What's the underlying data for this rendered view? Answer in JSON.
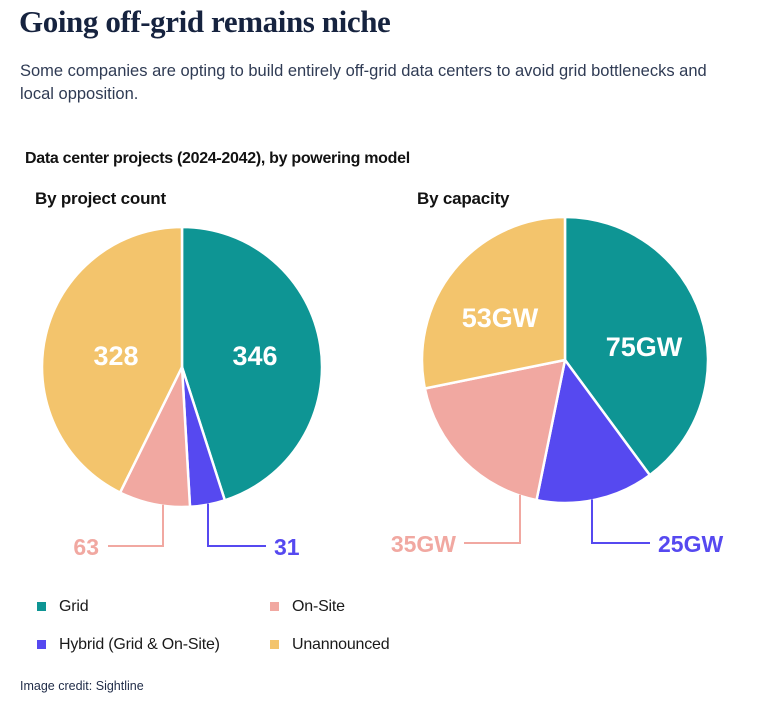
{
  "page": {
    "title": "Going off-grid remains niche",
    "subtitle": "Some companies are opting to build entirely off-grid data centers to avoid grid bottlenecks and local opposition.",
    "credit": "Image credit: Sightline"
  },
  "chart": {
    "title": "Data center projects (2024-2042), by powering model"
  },
  "colors": {
    "grid": "#0E9594",
    "hybrid": "#5649F0",
    "onsite": "#F1A8A1",
    "unannounced": "#F3C46C"
  },
  "legend": {
    "items": [
      {
        "label": "Grid",
        "color": "#0E9594"
      },
      {
        "label": "On-Site",
        "color": "#F1A8A1"
      },
      {
        "label": "Hybrid (Grid & On-Site)",
        "color": "#5649F0"
      },
      {
        "label": "Unannounced",
        "color": "#F3C46C"
      }
    ]
  },
  "chart_data": [
    {
      "type": "pie",
      "title": "By project count",
      "categories": [
        "Grid",
        "Hybrid (Grid & On-Site)",
        "On-Site",
        "Unannounced"
      ],
      "values": [
        346,
        31,
        63,
        328
      ],
      "labels": [
        "346",
        "31",
        "63",
        "328"
      ],
      "colors": [
        "#0E9594",
        "#5649F0",
        "#F1A8A1",
        "#F3C46C"
      ],
      "start_angle_deg": 0,
      "direction": "clockwise",
      "label_placement": {
        "inside_indices": [
          0,
          3
        ],
        "callout_indices": [
          1,
          2
        ]
      },
      "legend_position": "bottom"
    },
    {
      "type": "pie",
      "title": "By capacity",
      "categories": [
        "Grid",
        "Hybrid (Grid & On-Site)",
        "On-Site",
        "Unannounced"
      ],
      "values": [
        75,
        25,
        35,
        53
      ],
      "labels": [
        "75GW",
        "25GW",
        "35GW",
        "53GW"
      ],
      "labels_unit": "GW",
      "colors": [
        "#0E9594",
        "#5649F0",
        "#F1A8A1",
        "#F3C46C"
      ],
      "start_angle_deg": 0,
      "direction": "clockwise",
      "label_placement": {
        "inside_indices": [
          0,
          3
        ],
        "callout_indices": [
          1,
          2
        ]
      },
      "legend_position": "bottom"
    }
  ]
}
